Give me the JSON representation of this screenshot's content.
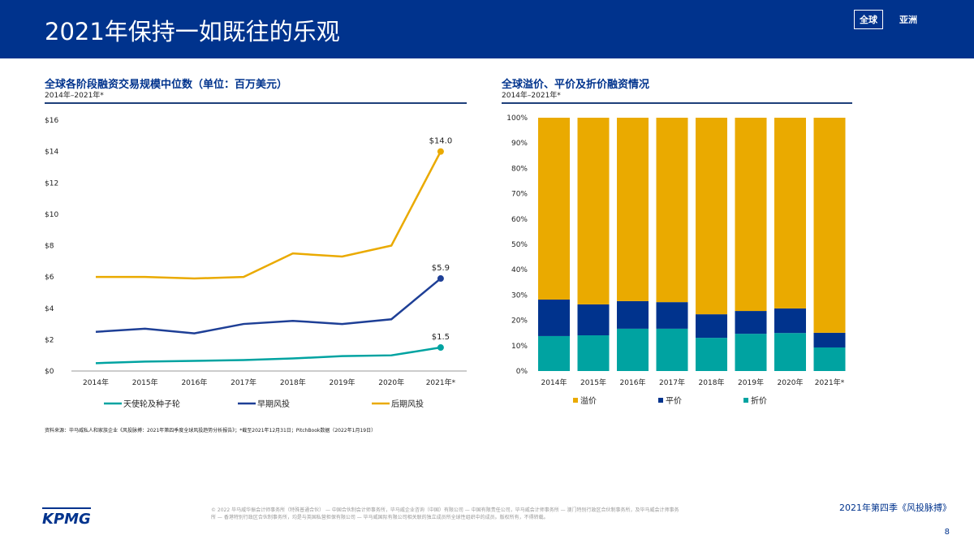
{
  "header": {
    "title": "2021年保持一如既往的乐观",
    "tabs": [
      "全球",
      "亚洲"
    ]
  },
  "chart_data": [
    {
      "type": "line",
      "title": "全球各阶段融资交易规模中位数（单位：百万美元）",
      "subtitle": "2014年–2021年*",
      "categories": [
        "2014年",
        "2015年",
        "2016年",
        "2017年",
        "2018年",
        "2019年",
        "2020年",
        "2021年*"
      ],
      "ylim": [
        0,
        16
      ],
      "yticks": [
        "$0",
        "$2",
        "$4",
        "$6",
        "$8",
        "$10",
        "$12",
        "$14",
        "$16"
      ],
      "legend": "bottom",
      "grid": false,
      "series": [
        {
          "name": "天使轮及种子轮",
          "color": "#00a3a1",
          "values": [
            0.5,
            0.6,
            0.65,
            0.7,
            0.8,
            0.95,
            1.0,
            1.5
          ],
          "end_label": "$1.5"
        },
        {
          "name": "早期风投",
          "color": "#1e3f96",
          "values": [
            2.5,
            2.7,
            2.4,
            3.0,
            3.2,
            3.0,
            3.3,
            5.9
          ],
          "end_label": "$5.9"
        },
        {
          "name": "后期风投",
          "color": "#eaaa00",
          "values": [
            6.0,
            6.0,
            5.9,
            6.0,
            7.5,
            7.3,
            8.0,
            14.0
          ],
          "end_label": "$14.0"
        }
      ]
    },
    {
      "type": "bar",
      "stacked": true,
      "title": "全球溢价、平价及折价融资情况",
      "subtitle": "2014年–2021年*",
      "categories": [
        "2014年",
        "2015年",
        "2016年",
        "2017年",
        "2018年",
        "2019年",
        "2020年",
        "2021年*"
      ],
      "ylim": [
        0,
        100
      ],
      "yticks": [
        "0%",
        "10%",
        "20%",
        "30%",
        "40%",
        "50%",
        "60%",
        "70%",
        "80%",
        "90%",
        "100%"
      ],
      "legend": "bottom",
      "series": [
        {
          "name": "折价",
          "color": "#00a3a1",
          "values": [
            13.8,
            14.1,
            16.7,
            16.7,
            13.1,
            14.7,
            15.0,
            9.3
          ]
        },
        {
          "name": "平价",
          "color": "#00338d",
          "values": [
            14.4,
            12.2,
            10.9,
            10.5,
            9.3,
            9.0,
            9.7,
            5.8
          ]
        },
        {
          "name": "溢价",
          "color": "#eaaa00",
          "values": [
            71.8,
            73.7,
            72.4,
            72.8,
            77.6,
            76.3,
            75.3,
            84.9
          ]
        }
      ],
      "legend_order": [
        "溢价",
        "平价",
        "折价"
      ]
    }
  ],
  "source": "资料来源：毕马威私人和家族企业《风投脉搏：2021年第四季度全球风投趋势分析报告》；*截至2021年12月31日；PitchBook数据（2022年1月19日）",
  "footer": {
    "copyright": "© 2022 毕马威华振会计师事务所（特殊普通合伙） — 中国合伙制会计师事务所，毕马威企业咨询（中国）有限公司 — 中国有限责任公司，毕马威会计师事务所 — 澳门特别行政区合伙制事务所，及毕马威会计师事务所 — 香港特别行政区合伙制事务所，均是与英国私营担保有限公司 — 毕马威国际有限公司相关联的独立成员所全球性组织中的成员。版权所有，不得转载。",
    "logo": "KPMG",
    "publication": "2021年第四季《风投脉搏》",
    "page": "8"
  }
}
